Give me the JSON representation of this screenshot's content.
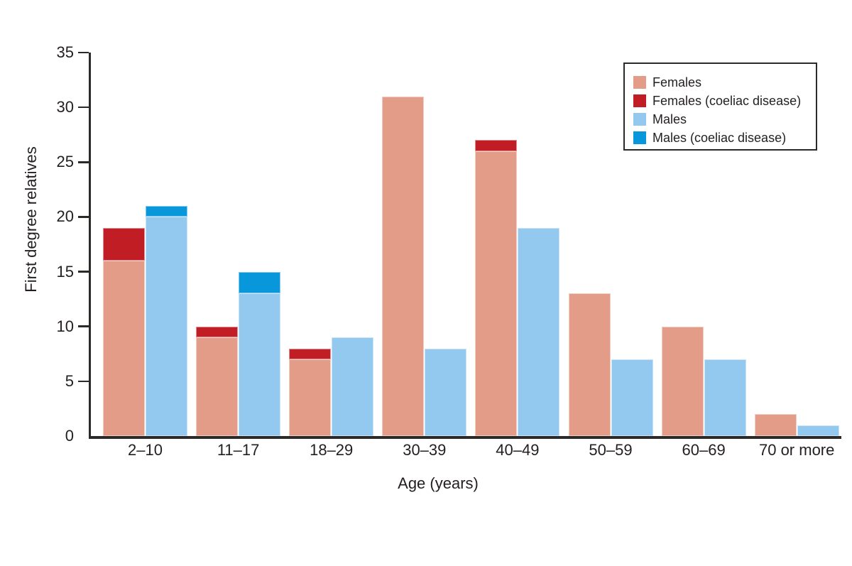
{
  "chart_data": {
    "type": "bar",
    "variant": "grouped-stacked",
    "title": "",
    "xlabel": "Age (years)",
    "ylabel": "First degree relatives",
    "ylim": [
      0,
      35
    ],
    "yticks": [
      0,
      5,
      10,
      15,
      20,
      25,
      30,
      35
    ],
    "grid": false,
    "legend_position": "top-right",
    "categories": [
      "2–10",
      "11–17",
      "18–29",
      "30–39",
      "40–49",
      "50–59",
      "60–69",
      "70 or more"
    ],
    "series": [
      {
        "name": "Females",
        "stack": "female",
        "color": "#E29C87",
        "values": [
          16,
          9,
          7,
          31,
          26,
          13,
          10,
          2
        ]
      },
      {
        "name": "Females (coeliac disease)",
        "stack": "female",
        "color": "#C01E24",
        "values": [
          3,
          1,
          1,
          0,
          1,
          0,
          0,
          0
        ]
      },
      {
        "name": "Males",
        "stack": "male",
        "color": "#93C9EE",
        "values": [
          20,
          13,
          9,
          8,
          19,
          7,
          7,
          1
        ]
      },
      {
        "name": "Males (coeliac disease)",
        "stack": "male",
        "color": "#0897DB",
        "values": [
          1,
          2,
          0,
          0,
          0,
          0,
          0,
          0
        ]
      }
    ],
    "stack_totals": {
      "females": [
        19,
        10,
        8,
        31,
        27,
        13,
        10,
        2
      ],
      "males": [
        21,
        15,
        9,
        8,
        19,
        7,
        7,
        1
      ]
    }
  },
  "colors": {
    "axis": "#2B2A29",
    "text": "#231F20",
    "background": "#ffffff"
  }
}
